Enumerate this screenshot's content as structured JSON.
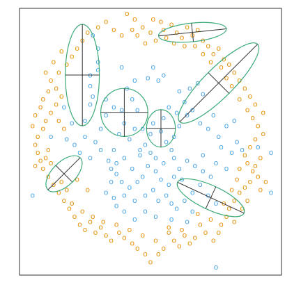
{
  "chart_data": {
    "type": "scatter",
    "title": "",
    "xlabel": "",
    "ylabel": "",
    "xlim": [
      0,
      1
    ],
    "ylim": [
      0,
      1
    ],
    "grid": false,
    "legend": "none",
    "marker_glyph": "o",
    "colors": {
      "blue": "#4fa8e6",
      "orange": "#e8950f",
      "ellipse": "#3aaa78",
      "axis_line": "#333333"
    },
    "series": [
      {
        "color_key": "blue",
        "points": [
          [
            0.05,
            0.3
          ],
          [
            0.96,
            0.31
          ],
          [
            0.75,
            0.03
          ],
          [
            0.91,
            0.48
          ],
          [
            0.96,
            0.46
          ],
          [
            0.62,
            0.36
          ],
          [
            0.28,
            0.9
          ],
          [
            0.3,
            0.85
          ],
          [
            0.3,
            0.8
          ],
          [
            0.3,
            0.77
          ],
          [
            0.27,
            0.75
          ],
          [
            0.27,
            0.71
          ],
          [
            0.28,
            0.67
          ],
          [
            0.27,
            0.64
          ],
          [
            0.39,
            0.78
          ],
          [
            0.51,
            0.78
          ],
          [
            0.55,
            0.75
          ],
          [
            0.53,
            0.73
          ],
          [
            0.49,
            0.74
          ],
          [
            0.41,
            0.7
          ],
          [
            0.43,
            0.66
          ],
          [
            0.45,
            0.62
          ],
          [
            0.39,
            0.62
          ],
          [
            0.36,
            0.63
          ],
          [
            0.33,
            0.66
          ],
          [
            0.25,
            0.58
          ],
          [
            0.2,
            0.57
          ],
          [
            0.18,
            0.51
          ],
          [
            0.21,
            0.49
          ],
          [
            0.25,
            0.52
          ],
          [
            0.29,
            0.5
          ],
          [
            0.27,
            0.44
          ],
          [
            0.31,
            0.47
          ],
          [
            0.36,
            0.47
          ],
          [
            0.34,
            0.43
          ],
          [
            0.37,
            0.42
          ],
          [
            0.4,
            0.44
          ],
          [
            0.43,
            0.4
          ],
          [
            0.46,
            0.45
          ],
          [
            0.48,
            0.49
          ],
          [
            0.5,
            0.53
          ],
          [
            0.47,
            0.55
          ],
          [
            0.51,
            0.57
          ],
          [
            0.55,
            0.59
          ],
          [
            0.54,
            0.54
          ],
          [
            0.56,
            0.5
          ],
          [
            0.58,
            0.47
          ],
          [
            0.59,
            0.52
          ],
          [
            0.61,
            0.56
          ],
          [
            0.6,
            0.61
          ],
          [
            0.63,
            0.65
          ],
          [
            0.66,
            0.62
          ],
          [
            0.65,
            0.7
          ],
          [
            0.68,
            0.72
          ],
          [
            0.7,
            0.68
          ],
          [
            0.64,
            0.6
          ],
          [
            0.69,
            0.57
          ],
          [
            0.72,
            0.55
          ],
          [
            0.74,
            0.6
          ],
          [
            0.76,
            0.52
          ],
          [
            0.79,
            0.56
          ],
          [
            0.77,
            0.48
          ],
          [
            0.81,
            0.46
          ],
          [
            0.83,
            0.5
          ],
          [
            0.85,
            0.47
          ],
          [
            0.82,
            0.58
          ],
          [
            0.7,
            0.45
          ],
          [
            0.67,
            0.41
          ],
          [
            0.64,
            0.43
          ],
          [
            0.61,
            0.4
          ],
          [
            0.59,
            0.37
          ],
          [
            0.57,
            0.34
          ],
          [
            0.54,
            0.36
          ],
          [
            0.52,
            0.39
          ],
          [
            0.49,
            0.41
          ],
          [
            0.47,
            0.37
          ],
          [
            0.45,
            0.35
          ],
          [
            0.42,
            0.33
          ],
          [
            0.39,
            0.35
          ],
          [
            0.37,
            0.38
          ],
          [
            0.35,
            0.35
          ],
          [
            0.33,
            0.31
          ],
          [
            0.36,
            0.29
          ],
          [
            0.4,
            0.3
          ],
          [
            0.44,
            0.28
          ],
          [
            0.48,
            0.3
          ],
          [
            0.51,
            0.32
          ],
          [
            0.53,
            0.28
          ],
          [
            0.56,
            0.3
          ],
          [
            0.58,
            0.27
          ],
          [
            0.6,
            0.25
          ],
          [
            0.63,
            0.28
          ],
          [
            0.66,
            0.31
          ],
          [
            0.69,
            0.34
          ],
          [
            0.72,
            0.3
          ],
          [
            0.75,
            0.27
          ],
          [
            0.73,
            0.37
          ],
          [
            0.7,
            0.39
          ],
          [
            0.75,
            0.42
          ],
          [
            0.79,
            0.4
          ],
          [
            0.48,
            0.24
          ],
          [
            0.52,
            0.22
          ],
          [
            0.44,
            0.21
          ],
          [
            0.4,
            0.24
          ],
          [
            0.37,
            0.26
          ],
          [
            0.46,
            0.47
          ],
          [
            0.5,
            0.46
          ],
          [
            0.52,
            0.44
          ],
          [
            0.55,
            0.42
          ],
          [
            0.42,
            0.51
          ],
          [
            0.44,
            0.55
          ],
          [
            0.4,
            0.57
          ],
          [
            0.38,
            0.53
          ],
          [
            0.31,
            0.55
          ],
          [
            0.33,
            0.6
          ],
          [
            0.57,
            0.63
          ],
          [
            0.61,
            0.69
          ],
          [
            0.44,
            0.73
          ],
          [
            0.58,
            0.21
          ],
          [
            0.66,
            0.24
          ],
          [
            0.64,
            0.2
          ],
          [
            0.35,
            0.4
          ],
          [
            0.23,
            0.46
          ],
          [
            0.17,
            0.63
          ],
          [
            0.12,
            0.52
          ],
          [
            0.59,
            0.44
          ]
        ]
      },
      {
        "color_key": "orange",
        "points": [
          [
            0.41,
            0.98
          ],
          [
            0.44,
            0.96
          ],
          [
            0.51,
            0.96
          ],
          [
            0.43,
            0.92
          ],
          [
            0.45,
            0.9
          ],
          [
            0.47,
            0.93
          ],
          [
            0.5,
            0.91
          ],
          [
            0.54,
            0.95
          ],
          [
            0.55,
            0.92
          ],
          [
            0.58,
            0.94
          ],
          [
            0.6,
            0.91
          ],
          [
            0.62,
            0.89
          ],
          [
            0.64,
            0.93
          ],
          [
            0.66,
            0.9
          ],
          [
            0.68,
            0.92
          ],
          [
            0.7,
            0.88
          ],
          [
            0.72,
            0.86
          ],
          [
            0.74,
            0.83
          ],
          [
            0.76,
            0.85
          ],
          [
            0.78,
            0.81
          ],
          [
            0.8,
            0.79
          ],
          [
            0.82,
            0.76
          ],
          [
            0.84,
            0.73
          ],
          [
            0.86,
            0.7
          ],
          [
            0.88,
            0.67
          ],
          [
            0.9,
            0.64
          ],
          [
            0.87,
            0.62
          ],
          [
            0.89,
            0.59
          ],
          [
            0.91,
            0.56
          ],
          [
            0.93,
            0.53
          ],
          [
            0.9,
            0.51
          ],
          [
            0.88,
            0.48
          ],
          [
            0.86,
            0.45
          ],
          [
            0.87,
            0.42
          ],
          [
            0.89,
            0.39
          ],
          [
            0.91,
            0.37
          ],
          [
            0.88,
            0.35
          ],
          [
            0.86,
            0.33
          ],
          [
            0.84,
            0.31
          ],
          [
            0.82,
            0.28
          ],
          [
            0.8,
            0.25
          ],
          [
            0.79,
            0.22
          ],
          [
            0.77,
            0.19
          ],
          [
            0.76,
            0.16
          ],
          [
            0.74,
            0.13
          ],
          [
            0.71,
            0.16
          ],
          [
            0.69,
            0.19
          ],
          [
            0.67,
            0.14
          ],
          [
            0.65,
            0.12
          ],
          [
            0.63,
            0.15
          ],
          [
            0.61,
            0.11
          ],
          [
            0.59,
            0.13
          ],
          [
            0.57,
            0.16
          ],
          [
            0.55,
            0.1
          ],
          [
            0.53,
            0.08
          ],
          [
            0.5,
            0.05
          ],
          [
            0.48,
            0.08
          ],
          [
            0.45,
            0.1
          ],
          [
            0.43,
            0.12
          ],
          [
            0.4,
            0.14
          ],
          [
            0.38,
            0.16
          ],
          [
            0.35,
            0.13
          ],
          [
            0.33,
            0.15
          ],
          [
            0.31,
            0.18
          ],
          [
            0.29,
            0.16
          ],
          [
            0.27,
            0.2
          ],
          [
            0.25,
            0.17
          ],
          [
            0.23,
            0.19
          ],
          [
            0.21,
            0.22
          ],
          [
            0.19,
            0.25
          ],
          [
            0.17,
            0.28
          ],
          [
            0.15,
            0.31
          ],
          [
            0.13,
            0.34
          ],
          [
            0.11,
            0.37
          ],
          [
            0.09,
            0.4
          ],
          [
            0.08,
            0.43
          ],
          [
            0.07,
            0.46
          ],
          [
            0.06,
            0.49
          ],
          [
            0.07,
            0.52
          ],
          [
            0.09,
            0.55
          ],
          [
            0.1,
            0.58
          ],
          [
            0.12,
            0.61
          ],
          [
            0.14,
            0.64
          ],
          [
            0.16,
            0.67
          ],
          [
            0.14,
            0.7
          ],
          [
            0.12,
            0.73
          ],
          [
            0.15,
            0.76
          ],
          [
            0.18,
            0.79
          ],
          [
            0.2,
            0.82
          ],
          [
            0.22,
            0.85
          ],
          [
            0.24,
            0.88
          ],
          [
            0.26,
            0.91
          ],
          [
            0.3,
            0.93
          ],
          [
            0.33,
            0.95
          ],
          [
            0.36,
            0.92
          ],
          [
            0.39,
            0.9
          ],
          [
            0.85,
            0.25
          ],
          [
            0.87,
            0.28
          ],
          [
            0.83,
            0.36
          ],
          [
            0.11,
            0.47
          ],
          [
            0.1,
            0.44
          ],
          [
            0.16,
            0.35
          ],
          [
            0.18,
            0.32
          ],
          [
            0.2,
            0.27
          ],
          [
            0.24,
            0.24
          ],
          [
            0.28,
            0.22
          ],
          [
            0.32,
            0.2
          ],
          [
            0.37,
            0.19
          ],
          [
            0.42,
            0.17
          ],
          [
            0.47,
            0.15
          ],
          [
            0.52,
            0.13
          ],
          [
            0.57,
            0.18
          ],
          [
            0.62,
            0.17
          ],
          [
            0.68,
            0.23
          ],
          [
            0.73,
            0.21
          ],
          [
            0.78,
            0.27
          ],
          [
            0.81,
            0.32
          ],
          [
            0.84,
            0.4
          ],
          [
            0.92,
            0.44
          ],
          [
            0.93,
            0.61
          ],
          [
            0.84,
            0.66
          ],
          [
            0.81,
            0.71
          ],
          [
            0.79,
            0.74
          ],
          [
            0.77,
            0.78
          ],
          [
            0.73,
            0.8
          ],
          [
            0.7,
            0.83
          ],
          [
            0.67,
            0.86
          ],
          [
            0.63,
            0.86
          ],
          [
            0.59,
            0.87
          ],
          [
            0.56,
            0.89
          ],
          [
            0.52,
            0.88
          ],
          [
            0.48,
            0.87
          ],
          [
            0.08,
            0.63
          ],
          [
            0.06,
            0.6
          ],
          [
            0.05,
            0.56
          ],
          [
            0.09,
            0.66
          ],
          [
            0.11,
            0.69
          ],
          [
            0.13,
            0.8
          ],
          [
            0.16,
            0.84
          ],
          [
            0.1,
            0.76
          ],
          [
            0.15,
            0.58
          ],
          [
            0.17,
            0.55
          ],
          [
            0.22,
            0.36
          ],
          [
            0.26,
            0.32
          ],
          [
            0.06,
            0.41
          ],
          [
            0.12,
            0.42
          ],
          [
            0.94,
            0.35
          ],
          [
            0.92,
            0.32
          ],
          [
            0.9,
            0.41
          ],
          [
            0.82,
            0.2
          ]
        ]
      }
    ],
    "ellipses": [
      {
        "center": [
          0.24,
          0.75
        ],
        "semi_axes": [
          0.065,
          0.19
        ],
        "angle_deg": 0
      },
      {
        "center": [
          0.4,
          0.61
        ],
        "semi_axes": [
          0.09,
          0.09
        ],
        "angle_deg": 0
      },
      {
        "center": [
          0.66,
          0.91
        ],
        "semi_axes": [
          0.13,
          0.035
        ],
        "angle_deg": -6
      },
      {
        "center": [
          0.76,
          0.72
        ],
        "semi_axes": [
          0.21,
          0.055
        ],
        "angle_deg": -45
      },
      {
        "center": [
          0.54,
          0.55
        ],
        "semi_axes": [
          0.055,
          0.07
        ],
        "angle_deg": 0
      },
      {
        "center": [
          0.17,
          0.38
        ],
        "semi_axes": [
          0.045,
          0.085
        ],
        "angle_deg": 45
      },
      {
        "center": [
          0.73,
          0.29
        ],
        "semi_axes": [
          0.14,
          0.045
        ],
        "angle_deg": 25
      }
    ]
  }
}
